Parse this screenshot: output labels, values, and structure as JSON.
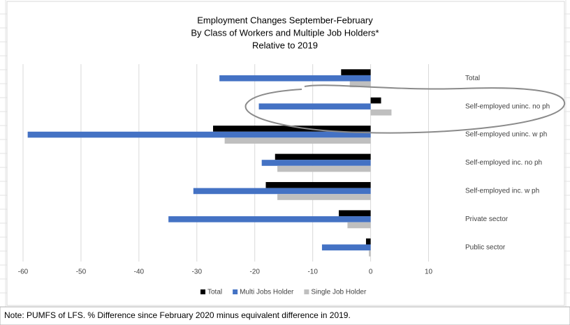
{
  "chart_data": {
    "type": "hbar",
    "title": [
      "Employment Changes September-February",
      "By Class of Workers and Multiple Job Holders*",
      "Relative to 2019"
    ],
    "categories": [
      "Total",
      "Self-employed uninc. no ph",
      "Self-employed uninc. w ph",
      "Self-employed inc. no ph",
      "Self-employed inc. w ph",
      "Private sector",
      "Public sector"
    ],
    "series": [
      {
        "name": "Total",
        "color": "#000000",
        "values": [
          -5.1,
          1.8,
          -27.2,
          -16.5,
          -18.1,
          -5.5,
          -0.8
        ]
      },
      {
        "name": "Multi Jobs Holder",
        "color": "#4472c4",
        "values": [
          -26.1,
          -19.3,
          -59.2,
          -18.8,
          -30.6,
          -34.9,
          -8.4
        ]
      },
      {
        "name": "Single Job Holder",
        "color": "#bfbfbf",
        "values": [
          -3.6,
          3.6,
          -25.2,
          -16.1,
          -16.1,
          -4.0,
          -0.3
        ]
      }
    ],
    "xlim": [
      -60,
      15
    ],
    "xticks": [
      -60,
      -50,
      -40,
      -30,
      -20,
      -10,
      0,
      10
    ],
    "grid": true,
    "note": "Note: PUMFS of LFS. % Difference since February 2020 minus equivalent difference in 2019."
  }
}
